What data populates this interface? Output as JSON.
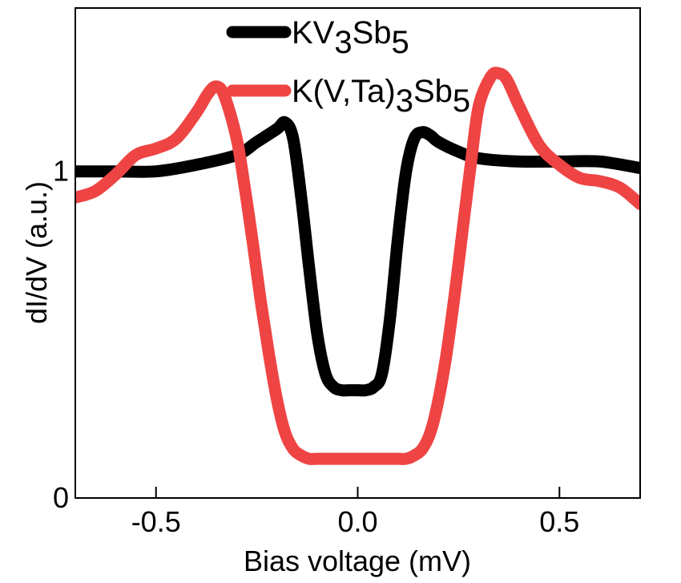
{
  "chart_data": {
    "type": "line",
    "xlabel": "Bias voltage (mV)",
    "ylabel": "dI/dV (a.u.)",
    "xlim": [
      -0.7,
      0.7
    ],
    "ylim": [
      0,
      1.5
    ],
    "x_ticks": [
      -0.5,
      0.0,
      0.5
    ],
    "x_tick_labels": [
      "-0.5",
      "0.0",
      "0.5"
    ],
    "y_ticks": [
      0,
      1
    ],
    "y_tick_labels": [
      "0",
      "1"
    ],
    "grid": false,
    "legend_position": "top-center",
    "series": [
      {
        "name": "KV3Sb5",
        "legend": {
          "base": "KV",
          "sub1": "3",
          "mid": "Sb",
          "sub2": "5"
        },
        "color": "#000000",
        "x": [
          -0.7,
          -0.6,
          -0.5,
          -0.4,
          -0.3,
          -0.25,
          -0.2,
          -0.18,
          -0.16,
          -0.14,
          -0.12,
          -0.1,
          -0.08,
          -0.06,
          -0.04,
          -0.02,
          0.0,
          0.02,
          0.04,
          0.06,
          0.08,
          0.1,
          0.12,
          0.14,
          0.16,
          0.18,
          0.2,
          0.25,
          0.3,
          0.4,
          0.5,
          0.6,
          0.7
        ],
        "y": [
          1.0,
          1.0,
          1.0,
          1.02,
          1.05,
          1.09,
          1.13,
          1.15,
          1.1,
          0.92,
          0.7,
          0.5,
          0.38,
          0.34,
          0.33,
          0.33,
          0.33,
          0.33,
          0.34,
          0.38,
          0.55,
          0.8,
          1.0,
          1.1,
          1.12,
          1.11,
          1.09,
          1.06,
          1.04,
          1.03,
          1.03,
          1.03,
          1.01
        ]
      },
      {
        "name": "K(V,Ta)3Sb5",
        "legend": {
          "base": "K(V,Ta)",
          "sub1": "3",
          "mid": "Sb",
          "sub2": "5"
        },
        "color": "#ef4444",
        "x": [
          -0.7,
          -0.65,
          -0.6,
          -0.55,
          -0.5,
          -0.45,
          -0.4,
          -0.37,
          -0.35,
          -0.33,
          -0.3,
          -0.28,
          -0.26,
          -0.24,
          -0.22,
          -0.2,
          -0.18,
          -0.16,
          -0.14,
          -0.12,
          -0.1,
          -0.08,
          -0.06,
          -0.04,
          -0.02,
          0.0,
          0.02,
          0.04,
          0.06,
          0.08,
          0.1,
          0.12,
          0.14,
          0.16,
          0.18,
          0.2,
          0.22,
          0.24,
          0.26,
          0.28,
          0.3,
          0.33,
          0.35,
          0.37,
          0.4,
          0.45,
          0.5,
          0.55,
          0.6,
          0.65,
          0.7
        ],
        "y": [
          0.92,
          0.94,
          0.99,
          1.05,
          1.07,
          1.1,
          1.18,
          1.24,
          1.26,
          1.23,
          1.1,
          0.95,
          0.78,
          0.6,
          0.44,
          0.3,
          0.2,
          0.15,
          0.13,
          0.12,
          0.12,
          0.12,
          0.12,
          0.12,
          0.12,
          0.12,
          0.12,
          0.12,
          0.12,
          0.12,
          0.12,
          0.12,
          0.13,
          0.15,
          0.2,
          0.3,
          0.44,
          0.62,
          0.82,
          1.02,
          1.2,
          1.29,
          1.3,
          1.28,
          1.2,
          1.08,
          1.02,
          0.98,
          0.97,
          0.95,
          0.9
        ]
      }
    ]
  }
}
